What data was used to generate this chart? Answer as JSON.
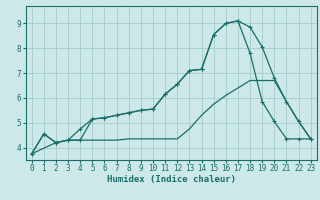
{
  "xlabel": "Humidex (Indice chaleur)",
  "bg_color": "#cce8e8",
  "grid_color": "#aacfcf",
  "line_color": "#1a6e6a",
  "xlim": [
    -0.5,
    23.5
  ],
  "ylim": [
    3.5,
    9.7
  ],
  "xticks": [
    0,
    1,
    2,
    3,
    4,
    5,
    6,
    7,
    8,
    9,
    10,
    11,
    12,
    13,
    14,
    15,
    16,
    17,
    18,
    19,
    20,
    21,
    22,
    23
  ],
  "yticks": [
    4,
    5,
    6,
    7,
    8,
    9
  ],
  "line1_x": [
    0,
    1,
    2,
    3,
    4,
    5,
    6,
    7,
    8,
    9,
    10,
    11,
    12,
    13,
    14,
    15,
    16,
    17,
    18,
    19,
    20,
    21,
    22,
    23
  ],
  "line1_y": [
    3.75,
    4.55,
    4.2,
    4.3,
    4.75,
    5.15,
    5.2,
    5.3,
    5.4,
    5.5,
    5.55,
    6.15,
    6.55,
    7.1,
    7.15,
    8.55,
    9.0,
    9.1,
    8.85,
    8.05,
    6.8,
    5.85,
    5.05,
    4.35
  ],
  "line2_x": [
    0,
    1,
    2,
    3,
    4,
    5,
    6,
    7,
    8,
    9,
    10,
    11,
    12,
    13,
    14,
    15,
    16,
    17,
    18,
    19,
    20,
    21,
    22,
    23
  ],
  "line2_y": [
    3.75,
    4.55,
    4.2,
    4.3,
    4.3,
    5.15,
    5.2,
    5.3,
    5.4,
    5.5,
    5.55,
    6.15,
    6.55,
    7.1,
    7.15,
    8.55,
    9.0,
    9.1,
    7.8,
    5.85,
    5.05,
    4.35,
    4.35,
    4.35
  ],
  "line3_x": [
    0,
    2,
    3,
    4,
    5,
    6,
    7,
    8,
    9,
    10,
    11,
    12,
    13,
    14,
    15,
    16,
    17,
    18,
    19,
    20,
    21,
    22,
    23
  ],
  "line3_y": [
    3.75,
    4.2,
    4.3,
    4.3,
    4.3,
    4.3,
    4.3,
    4.35,
    4.35,
    4.35,
    4.35,
    4.35,
    4.75,
    5.3,
    5.75,
    6.1,
    6.4,
    6.7,
    6.7,
    6.7,
    5.85,
    5.05,
    4.35
  ]
}
